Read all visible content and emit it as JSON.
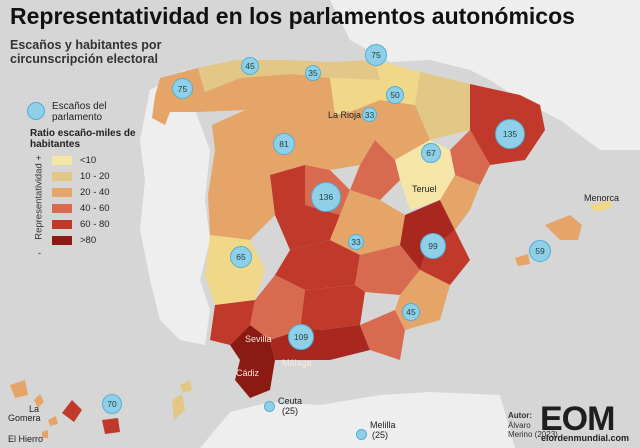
{
  "title": "Representatividad en los parlamentos autonómicos",
  "subtitle": "Escaños y habitantes por circunscripción electoral",
  "legend": {
    "circle_label": "Escaños del parlamento",
    "ratio_title": "Ratio escaño-miles de habitantes",
    "axis_label": "Representatividad",
    "plus": "+",
    "minus": "-",
    "bins": [
      "<10",
      "10 - 20",
      "20 - 40",
      "40 - 60",
      "60 - 80",
      ">80"
    ],
    "colors": [
      "#f5e6a8",
      "#e2c786",
      "#e6a568",
      "#d86a4f",
      "#c0392b",
      "#8b1a12"
    ]
  },
  "seats": {
    "basque": "75",
    "asturias": "45",
    "cantabria": "35",
    "galicia": "75",
    "navarra": "50",
    "la_rioja": "33",
    "catalonia": "135",
    "castilla_leon": "81",
    "aragon": "67",
    "madrid": "136",
    "castilla_la_mancha": "33",
    "valencia": "99",
    "balearic": "59",
    "extremadura": "65",
    "murcia": "45",
    "andalucia": "109",
    "canarias": "70"
  },
  "labels": {
    "la_rioja": "La Rioja",
    "teruel": "Teruel",
    "menorca": "Menorca",
    "sevilla": "Sevilla",
    "malaga": "Málaga",
    "cadiz": "Cádiz",
    "ceuta": "Ceuta",
    "ceuta_seats": "(25)",
    "melilla": "Melilla",
    "melilla_seats": "(25)",
    "la": "La",
    "gomera": "Gomera",
    "el_hierro": "El Hierro"
  },
  "credit": {
    "title": "Autor:",
    "author_line_1": "Álvaro",
    "author_line_2": "Merino (2023)"
  },
  "logo": {
    "letters": "EOM",
    "site": "elordenmundial.com"
  }
}
